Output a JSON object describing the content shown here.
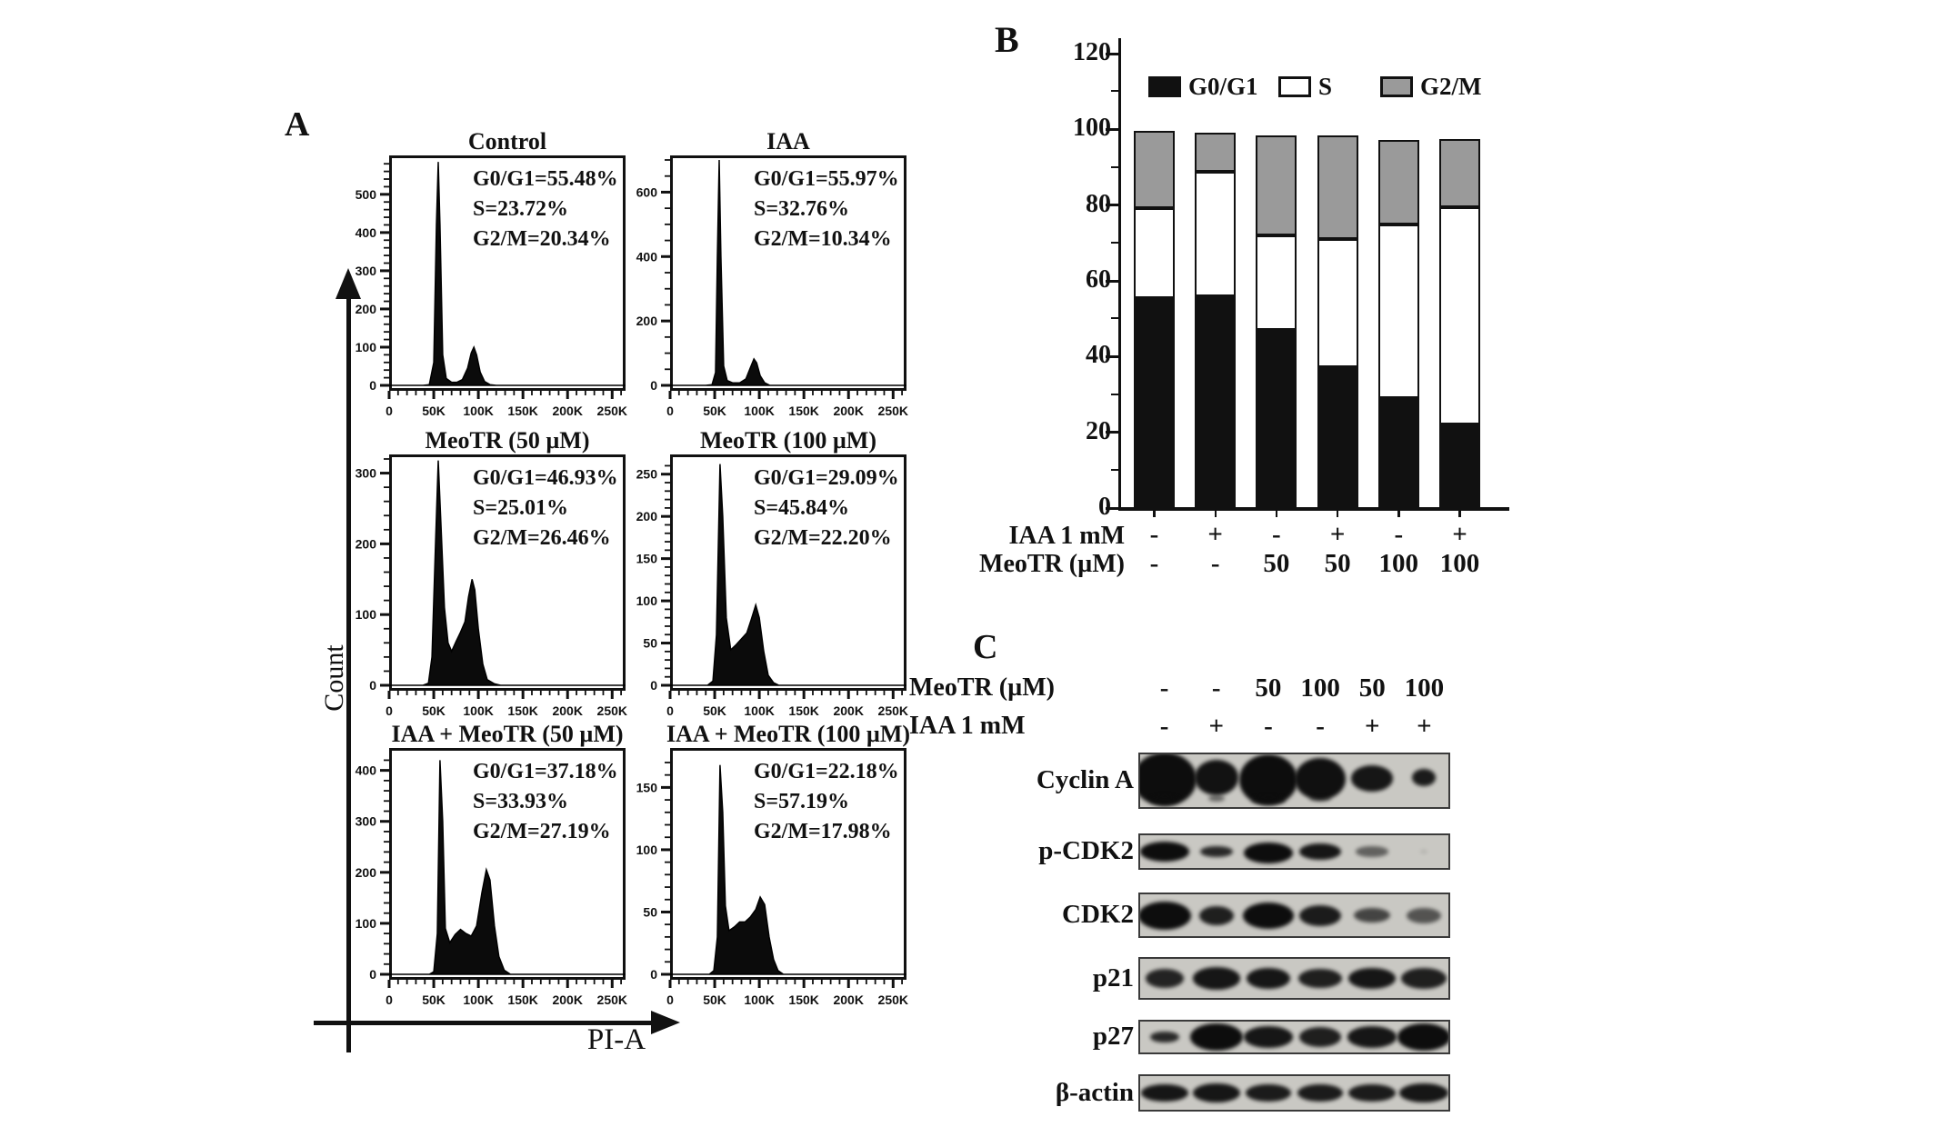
{
  "panel_labels": {
    "a": "A",
    "b": "B",
    "c": "C"
  },
  "panelA": {
    "y_axis_label": "Count",
    "x_axis_label": "PI-A",
    "x_tick_labels": [
      "0",
      "50K",
      "100K",
      "150K",
      "200K",
      "250K"
    ],
    "x_max": 265,
    "plots": [
      {
        "title": "Control",
        "stats": [
          "G0/G1=55.48%",
          "S=23.72%",
          "G2/M=20.34%"
        ],
        "y_ticks": [
          0,
          100,
          200,
          300,
          400,
          500
        ],
        "y_minor_step": 20,
        "y_max": 590,
        "profile": [
          [
            0,
            0
          ],
          [
            38,
            0
          ],
          [
            45,
            2
          ],
          [
            50,
            60
          ],
          [
            53,
            420
          ],
          [
            55,
            585
          ],
          [
            57,
            420
          ],
          [
            60,
            80
          ],
          [
            64,
            18
          ],
          [
            70,
            8
          ],
          [
            76,
            8
          ],
          [
            82,
            15
          ],
          [
            88,
            45
          ],
          [
            92,
            85
          ],
          [
            95,
            100
          ],
          [
            98,
            80
          ],
          [
            102,
            35
          ],
          [
            107,
            10
          ],
          [
            113,
            2
          ],
          [
            120,
            0
          ],
          [
            265,
            0
          ]
        ]
      },
      {
        "title": "IAA",
        "stats": [
          "G0/G1=55.97%",
          "S=32.76%",
          "G2/M=10.34%"
        ],
        "y_ticks": [
          0,
          200,
          400,
          600
        ],
        "y_minor_step": 50,
        "y_max": 700,
        "profile": [
          [
            0,
            0
          ],
          [
            40,
            0
          ],
          [
            47,
            2
          ],
          [
            51,
            40
          ],
          [
            53,
            400
          ],
          [
            55,
            700
          ],
          [
            57,
            400
          ],
          [
            60,
            60
          ],
          [
            64,
            15
          ],
          [
            70,
            8
          ],
          [
            78,
            8
          ],
          [
            85,
            20
          ],
          [
            90,
            55
          ],
          [
            94,
            82
          ],
          [
            97,
            70
          ],
          [
            101,
            30
          ],
          [
            106,
            8
          ],
          [
            112,
            0
          ],
          [
            265,
            0
          ]
        ]
      },
      {
        "title": "MeoTR (50 µM)",
        "stats": [
          "G0/G1=46.93%",
          "S=25.01%",
          "G2/M=26.46%"
        ],
        "y_ticks": [
          0,
          100,
          200,
          300
        ],
        "y_minor_step": 20,
        "y_max": 320,
        "profile": [
          [
            0,
            0
          ],
          [
            38,
            0
          ],
          [
            44,
            3
          ],
          [
            48,
            40
          ],
          [
            52,
            200
          ],
          [
            55,
            318
          ],
          [
            58,
            230
          ],
          [
            62,
            110
          ],
          [
            66,
            60
          ],
          [
            70,
            48
          ],
          [
            75,
            62
          ],
          [
            80,
            75
          ],
          [
            85,
            90
          ],
          [
            89,
            125
          ],
          [
            93,
            150
          ],
          [
            96,
            135
          ],
          [
            100,
            80
          ],
          [
            105,
            30
          ],
          [
            110,
            8
          ],
          [
            118,
            2
          ],
          [
            125,
            0
          ],
          [
            265,
            0
          ]
        ]
      },
      {
        "title": "MeoTR (100 µM)",
        "stats": [
          "G0/G1=29.09%",
          "S=45.84%",
          "G2/M=22.20%"
        ],
        "y_ticks": [
          0,
          50,
          100,
          150,
          200,
          250
        ],
        "y_minor_step": 10,
        "y_max": 268,
        "profile": [
          [
            0,
            0
          ],
          [
            42,
            0
          ],
          [
            48,
            5
          ],
          [
            52,
            60
          ],
          [
            56,
            262
          ],
          [
            59,
            200
          ],
          [
            63,
            80
          ],
          [
            68,
            42
          ],
          [
            74,
            48
          ],
          [
            80,
            55
          ],
          [
            86,
            62
          ],
          [
            91,
            78
          ],
          [
            96,
            95
          ],
          [
            100,
            80
          ],
          [
            105,
            40
          ],
          [
            110,
            12
          ],
          [
            116,
            3
          ],
          [
            122,
            0
          ],
          [
            265,
            0
          ]
        ]
      },
      {
        "title": "IAA + MeoTR (50 µM)",
        "stats": [
          "G0/G1=37.18%",
          "S=33.93%",
          "G2/M=27.19%"
        ],
        "y_ticks": [
          0,
          100,
          200,
          300,
          400
        ],
        "y_minor_step": 20,
        "y_max": 435,
        "profile": [
          [
            0,
            0
          ],
          [
            45,
            0
          ],
          [
            50,
            5
          ],
          [
            54,
            80
          ],
          [
            57,
            420
          ],
          [
            60,
            300
          ],
          [
            63,
            90
          ],
          [
            68,
            62
          ],
          [
            74,
            78
          ],
          [
            80,
            88
          ],
          [
            86,
            80
          ],
          [
            92,
            75
          ],
          [
            98,
            95
          ],
          [
            104,
            160
          ],
          [
            109,
            205
          ],
          [
            113,
            185
          ],
          [
            118,
            95
          ],
          [
            123,
            35
          ],
          [
            129,
            8
          ],
          [
            136,
            0
          ],
          [
            265,
            0
          ]
        ]
      },
      {
        "title": "IAA + MeoTR (100 µM)",
        "stats": [
          "G0/G1=22.18%",
          "S=57.19%",
          "G2/M=17.98%"
        ],
        "y_ticks": [
          0,
          50,
          100,
          150
        ],
        "y_minor_step": 10,
        "y_max": 178,
        "profile": [
          [
            0,
            0
          ],
          [
            44,
            0
          ],
          [
            49,
            3
          ],
          [
            53,
            30
          ],
          [
            56,
            168
          ],
          [
            59,
            130
          ],
          [
            62,
            55
          ],
          [
            66,
            35
          ],
          [
            72,
            38
          ],
          [
            78,
            42
          ],
          [
            84,
            42
          ],
          [
            90,
            46
          ],
          [
            96,
            52
          ],
          [
            101,
            62
          ],
          [
            106,
            56
          ],
          [
            111,
            30
          ],
          [
            116,
            12
          ],
          [
            121,
            3
          ],
          [
            127,
            0
          ],
          [
            265,
            0
          ]
        ]
      }
    ]
  },
  "panelB": {
    "y_ticks": [
      0,
      20,
      40,
      60,
      80,
      100,
      120
    ],
    "y_minor_step": 10,
    "legend": [
      {
        "label": "G0/G1",
        "color": "#111111"
      },
      {
        "label": "S",
        "color": "#ffffff"
      },
      {
        "label": "G2/M",
        "color": "#9a9a9a"
      }
    ],
    "bars": [
      {
        "g0g1": 55.48,
        "s": 23.72,
        "g2m": 20.34
      },
      {
        "g0g1": 55.97,
        "s": 32.76,
        "g2m": 10.34
      },
      {
        "g0g1": 46.93,
        "s": 25.01,
        "g2m": 26.46
      },
      {
        "g0g1": 37.18,
        "s": 33.93,
        "g2m": 27.19
      },
      {
        "g0g1": 29.09,
        "s": 45.84,
        "g2m": 22.2
      },
      {
        "g0g1": 22.18,
        "s": 57.19,
        "g2m": 17.98
      }
    ],
    "condition_rows": [
      {
        "label": "IAA 1 mM",
        "values": [
          "-",
          "+",
          "-",
          "+",
          "-",
          "+"
        ]
      },
      {
        "label": "MeoTR (µM)",
        "values": [
          "-",
          "-",
          "50",
          "50",
          "100",
          "100"
        ]
      }
    ]
  },
  "panelC": {
    "condition_rows": [
      {
        "label": "MeoTR (µM)",
        "values": [
          "-",
          "-",
          "50",
          "100",
          "50",
          "100"
        ]
      },
      {
        "label": "IAA 1 mM",
        "values": [
          "-",
          "+",
          "-",
          "-",
          "+",
          "+"
        ]
      }
    ],
    "blots": [
      {
        "label": "Cyclin A",
        "bands": [
          [
            0,
            70,
            0.95,
            1,
            -0.02
          ],
          [
            1,
            48,
            0.62,
            0.97,
            -0.06
          ],
          [
            2,
            64,
            0.9,
            1,
            -0.02
          ],
          [
            3,
            56,
            0.74,
            0.98,
            -0.04
          ],
          [
            4,
            46,
            0.46,
            0.95,
            -0.04
          ],
          [
            5,
            26,
            0.3,
            0.92,
            -0.06
          ],
          [
            0,
            32,
            0.16,
            0.55,
            0.36
          ],
          [
            1,
            18,
            0.12,
            0.5,
            0.34
          ],
          [
            2,
            38,
            0.16,
            0.6,
            0.37
          ],
          [
            3,
            24,
            0.11,
            0.45,
            0.34
          ]
        ]
      },
      {
        "label": "p-CDK2",
        "bands": [
          [
            0,
            54,
            0.55,
            1,
            0
          ],
          [
            1,
            36,
            0.32,
            0.85,
            0
          ],
          [
            2,
            54,
            0.58,
            1,
            0.04
          ],
          [
            3,
            46,
            0.45,
            0.95,
            0
          ],
          [
            4,
            36,
            0.28,
            0.55,
            0
          ],
          [
            5,
            8,
            0.1,
            0.12,
            0
          ]
        ]
      },
      {
        "label": "CDK2",
        "bands": [
          [
            0,
            58,
            0.62,
            1,
            0
          ],
          [
            1,
            38,
            0.42,
            0.9,
            0
          ],
          [
            2,
            56,
            0.58,
            1,
            0
          ],
          [
            3,
            46,
            0.46,
            0.92,
            0
          ],
          [
            4,
            40,
            0.32,
            0.7,
            0
          ],
          [
            5,
            38,
            0.34,
            0.62,
            0
          ]
        ]
      },
      {
        "label": "p21",
        "bands": [
          [
            0,
            42,
            0.44,
            0.88,
            0
          ],
          [
            1,
            52,
            0.52,
            0.95,
            0
          ],
          [
            2,
            48,
            0.5,
            0.95,
            0
          ],
          [
            3,
            48,
            0.46,
            0.9,
            0
          ],
          [
            4,
            52,
            0.5,
            0.95,
            0
          ],
          [
            5,
            50,
            0.5,
            0.9,
            0
          ]
        ]
      },
      {
        "label": "p27",
        "bands": [
          [
            0,
            32,
            0.34,
            0.85,
            0
          ],
          [
            1,
            58,
            0.8,
            1,
            0
          ],
          [
            2,
            54,
            0.64,
            0.95,
            0
          ],
          [
            3,
            46,
            0.58,
            0.9,
            0
          ],
          [
            4,
            54,
            0.62,
            0.95,
            0
          ],
          [
            5,
            58,
            0.78,
            1,
            0
          ]
        ]
      },
      {
        "label": "β-actin",
        "bands": [
          [
            0,
            52,
            0.48,
            0.95,
            0
          ],
          [
            1,
            52,
            0.52,
            0.95,
            0
          ],
          [
            2,
            50,
            0.48,
            0.92,
            0
          ],
          [
            3,
            50,
            0.48,
            0.92,
            0
          ],
          [
            4,
            52,
            0.48,
            0.92,
            0
          ],
          [
            5,
            54,
            0.52,
            0.95,
            0
          ]
        ]
      }
    ]
  },
  "chart_data": [
    {
      "type": "area",
      "subtype": "flow-cytometry-cell-cycle-histograms",
      "xlabel": "PI-A",
      "ylabel": "Count",
      "x_tick_labels": [
        "0",
        "50K",
        "100K",
        "150K",
        "200K",
        "250K"
      ],
      "plots": [
        {
          "title": "Control",
          "g0g1_pct": 55.48,
          "s_pct": 23.72,
          "g2m_pct": 20.34,
          "y_ticks": [
            0,
            100,
            200,
            300,
            400,
            500
          ]
        },
        {
          "title": "IAA",
          "g0g1_pct": 55.97,
          "s_pct": 32.76,
          "g2m_pct": 10.34,
          "y_ticks": [
            0,
            200,
            400,
            600
          ]
        },
        {
          "title": "MeoTR (50 µM)",
          "g0g1_pct": 46.93,
          "s_pct": 25.01,
          "g2m_pct": 26.46,
          "y_ticks": [
            0,
            100,
            200,
            300
          ]
        },
        {
          "title": "MeoTR (100 µM)",
          "g0g1_pct": 29.09,
          "s_pct": 45.84,
          "g2m_pct": 22.2,
          "y_ticks": [
            0,
            50,
            100,
            150,
            200,
            250
          ]
        },
        {
          "title": "IAA + MeoTR (50 µM)",
          "g0g1_pct": 37.18,
          "s_pct": 33.93,
          "g2m_pct": 27.19,
          "y_ticks": [
            0,
            100,
            200,
            300,
            400
          ]
        },
        {
          "title": "IAA + MeoTR (100 µM)",
          "g0g1_pct": 22.18,
          "s_pct": 57.19,
          "g2m_pct": 17.98,
          "y_ticks": [
            0,
            50,
            100,
            150
          ]
        }
      ]
    },
    {
      "type": "bar",
      "stacked": true,
      "categories": [
        "IAA-/MeoTR-",
        "IAA+/MeoTR-",
        "IAA-/MeoTR50",
        "IAA+/MeoTR50",
        "IAA-/MeoTR100",
        "IAA+/MeoTR100"
      ],
      "series": [
        {
          "name": "G0/G1",
          "values": [
            55.48,
            55.97,
            46.93,
            37.18,
            29.09,
            22.18
          ],
          "color": "#111111"
        },
        {
          "name": "S",
          "values": [
            23.72,
            32.76,
            25.01,
            33.93,
            45.84,
            57.19
          ],
          "color": "#ffffff"
        },
        {
          "name": "G2/M",
          "values": [
            20.34,
            10.34,
            26.46,
            27.19,
            22.2,
            17.98
          ],
          "color": "#9a9a9a"
        }
      ],
      "ylim": [
        0,
        120
      ],
      "y_ticks": [
        0,
        20,
        40,
        60,
        80,
        100,
        120
      ],
      "grid": false,
      "legend_position": "top",
      "x_condition_rows": [
        {
          "label": "IAA 1 mM",
          "values": [
            "-",
            "+",
            "-",
            "+",
            "-",
            "+"
          ]
        },
        {
          "label": "MeoTR (µM)",
          "values": [
            "-",
            "-",
            "50",
            "50",
            "100",
            "100"
          ]
        }
      ]
    },
    {
      "type": "table",
      "subtype": "western-blot",
      "condition_rows": [
        {
          "label": "MeoTR (µM)",
          "values": [
            "-",
            "-",
            "50",
            "100",
            "50",
            "100"
          ]
        },
        {
          "label": "IAA 1 mM",
          "values": [
            "-",
            "+",
            "-",
            "-",
            "+",
            "+"
          ]
        }
      ],
      "proteins": [
        "Cyclin A",
        "p-CDK2",
        "CDK2",
        "p21",
        "p27",
        "β-actin"
      ]
    }
  ]
}
